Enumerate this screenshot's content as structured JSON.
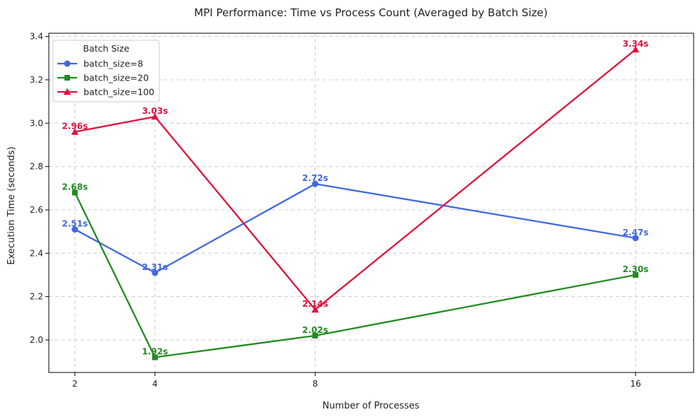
{
  "chart_data": {
    "type": "line",
    "title": "MPI Performance: Time vs Process Count (Averaged by Batch Size)",
    "xlabel": "Number of Processes",
    "ylabel": "Execution Time (seconds)",
    "x": [
      2,
      4,
      8,
      16
    ],
    "x_tick_labels": [
      "2",
      "4",
      "8",
      "16"
    ],
    "xlim": [
      1.35,
      17.45
    ],
    "ylim": [
      1.85,
      3.415
    ],
    "y_ticks": [
      2.0,
      2.2,
      2.4,
      2.6,
      2.8,
      3.0,
      3.2,
      3.4
    ],
    "y_tick_labels": [
      "2.0",
      "2.2",
      "2.4",
      "2.6",
      "2.8",
      "3.0",
      "3.2",
      "3.4"
    ],
    "grid": true,
    "legend": {
      "title": "Batch Size",
      "placement": "top-left"
    },
    "series": [
      {
        "name": "batch_size=8",
        "color": "#4169e1",
        "marker": "circle",
        "values": [
          2.51,
          2.31,
          2.72,
          2.47
        ],
        "labels": [
          "2.51s",
          "2.31s",
          "2.72s",
          "2.47s"
        ]
      },
      {
        "name": "batch_size=20",
        "color": "#228b22",
        "marker": "square",
        "values": [
          2.68,
          1.92,
          2.02,
          2.3
        ],
        "labels": [
          "2.68s",
          "1.92s",
          "2.02s",
          "2.30s"
        ]
      },
      {
        "name": "batch_size=100",
        "color": "#dc143c",
        "marker": "triangle",
        "values": [
          2.96,
          3.03,
          2.14,
          3.34
        ],
        "labels": [
          "2.96s",
          "3.03s",
          "2.14s",
          "3.34s"
        ]
      }
    ]
  }
}
